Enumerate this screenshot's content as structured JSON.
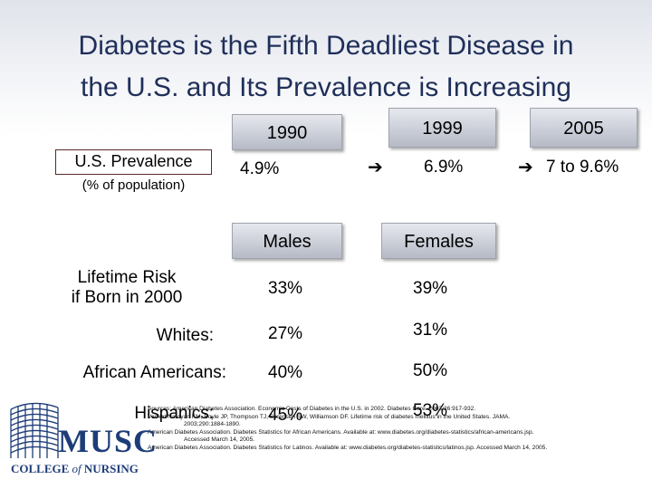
{
  "title_line1": "Diabetes is the Fifth Deadliest Disease in",
  "title_line2": "the U.S. and Its Prevalence is Increasing",
  "prevalence": {
    "label": "U.S. Prevalence",
    "sublabel": "(% of population)",
    "years": [
      "1990",
      "1999",
      "2005"
    ],
    "values": [
      "4.9%",
      "6.9%",
      "7 to 9.6%"
    ]
  },
  "risk": {
    "col_males": "Males",
    "col_females": "Females",
    "rows": [
      {
        "label1": "Lifetime Risk",
        "label2": "if Born in 2000",
        "males": "33%",
        "females": "39%"
      },
      {
        "label1": "Whites:",
        "males": "27%",
        "females": "31%"
      },
      {
        "label1": "African Americans:",
        "males": "40%",
        "females": "50%"
      },
      {
        "label1": "Hispanics:",
        "males": "45%",
        "females": "53%"
      }
    ]
  },
  "sources": [
    "Sources: American Diabetes Association. Economic Costs of Diabetes in the U.S. in 2002. Diabetes Care. 2003;26:917-932.",
    "Venkat Narayan KM, Boyle JP, Thompson TJ, Sorensen SW, Williamson DF. Lifetime risk of diabetes mellitus in the United States. JAMA.",
    "2003;290:1884-1890.",
    "American Diabetes Association. Diabetes Statistics for African Americans. Available at: www.diabetes.org/diabetes-statistics/african-americans.jsp.",
    "Accessed March 14, 2005.",
    "American Diabetes Association. Diabetes Statistics for Latinos. Available at: www.diabetes.org/diabetes-statistics/latinos.jsp. Accessed March 14, 2005."
  ],
  "logo": {
    "name": "MUSC",
    "sub_prefix": "COLLEGE",
    "sub_of": "of",
    "sub_suffix": "NURSING",
    "color": "#1d3d78"
  }
}
